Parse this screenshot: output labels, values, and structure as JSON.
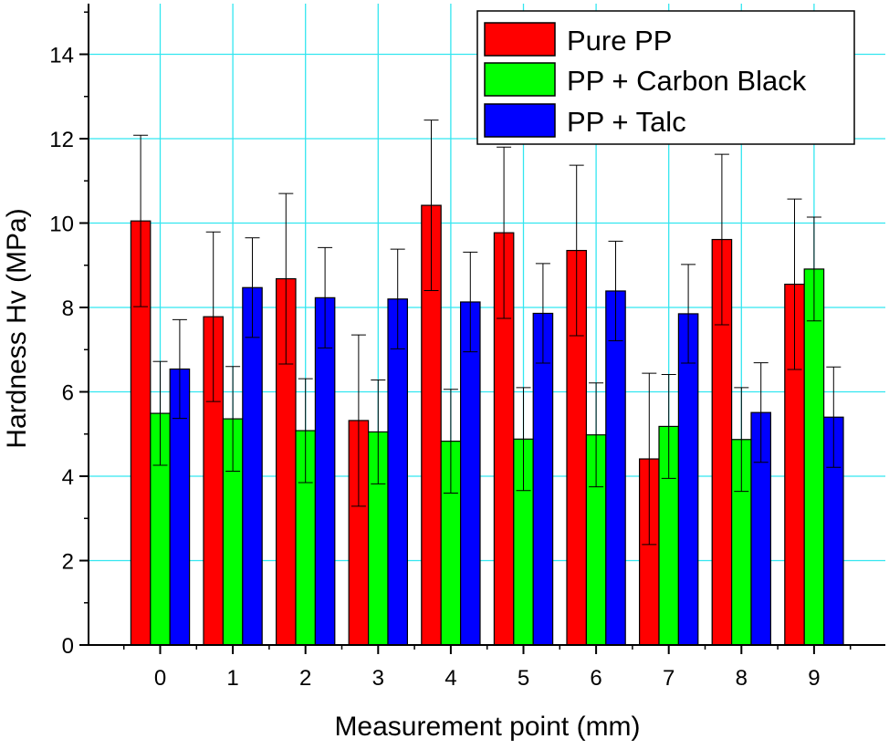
{
  "chart_data": {
    "type": "bar",
    "title": "",
    "xlabel": "Measurement point (mm)",
    "ylabel": "Hardness Hv (MPa)",
    "categories": [
      "0",
      "1",
      "2",
      "3",
      "4",
      "5",
      "6",
      "7",
      "8",
      "9"
    ],
    "ylim": [
      0,
      15.2
    ],
    "yticks": [
      0,
      2,
      4,
      6,
      8,
      10,
      12,
      14
    ],
    "grid": true,
    "legend_position": "top-right",
    "series": [
      {
        "name": "Pure PP",
        "color": "#ff0000",
        "values": [
          10.05,
          7.78,
          8.68,
          5.32,
          10.42,
          9.77,
          9.35,
          4.41,
          9.61,
          8.55
        ],
        "errors": [
          2.03,
          2.01,
          2.02,
          2.03,
          2.02,
          2.03,
          2.02,
          2.03,
          2.02,
          2.02
        ]
      },
      {
        "name": "PP + Carbon Black",
        "color": "#00ff00",
        "values": [
          5.49,
          5.36,
          5.08,
          5.05,
          4.83,
          4.88,
          4.98,
          5.18,
          4.87,
          8.91
        ],
        "errors": [
          1.23,
          1.24,
          1.23,
          1.23,
          1.23,
          1.22,
          1.23,
          1.23,
          1.23,
          1.23
        ]
      },
      {
        "name": "PP + Talc",
        "color": "#0000ff",
        "values": [
          6.54,
          8.47,
          8.23,
          8.2,
          8.13,
          7.86,
          8.39,
          7.85,
          5.51,
          5.4
        ],
        "errors": [
          1.17,
          1.18,
          1.19,
          1.18,
          1.18,
          1.18,
          1.18,
          1.17,
          1.18,
          1.19
        ]
      }
    ]
  }
}
